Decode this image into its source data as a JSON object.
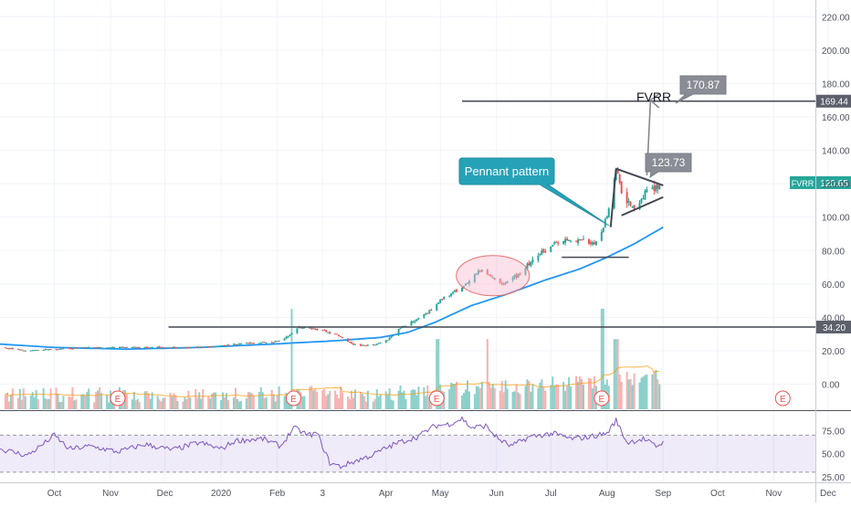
{
  "chart_data": {
    "type": "candlestick",
    "ticker": "FVRR",
    "title": "FVRR",
    "last_price": 120.65,
    "last_price_label": "120.65",
    "y_axis": {
      "range": [
        -15,
        230
      ],
      "ticks": [
        "0.00",
        "20.00",
        "40.00",
        "60.00",
        "80.00",
        "100.00",
        "120.00",
        "140.00",
        "160.00",
        "180.00",
        "200.00",
        "220.00"
      ]
    },
    "x_axis": {
      "range_days": [
        -10,
        440
      ],
      "labels": [
        {
          "text": "Oct",
          "day": 20
        },
        {
          "text": "Nov",
          "day": 51
        },
        {
          "text": "Dec",
          "day": 81
        },
        {
          "text": "2020",
          "day": 112
        },
        {
          "text": "Feb",
          "day": 143
        },
        {
          "text": "3",
          "day": 168
        },
        {
          "text": "Apr",
          "day": 203
        },
        {
          "text": "May",
          "day": 233
        },
        {
          "text": "Jun",
          "day": 264
        },
        {
          "text": "Jul",
          "day": 294
        },
        {
          "text": "Aug",
          "day": 325
        },
        {
          "text": "Sep",
          "day": 356
        },
        {
          "text": "Oct",
          "day": 386
        },
        {
          "text": "Nov",
          "day": 417
        },
        {
          "text": "Dec",
          "day": 447
        }
      ]
    },
    "price_anchors": [
      [
        -10,
        22
      ],
      [
        5,
        20
      ],
      [
        20,
        21
      ],
      [
        40,
        22
      ],
      [
        60,
        22
      ],
      [
        80,
        22
      ],
      [
        100,
        22
      ],
      [
        120,
        24
      ],
      [
        135,
        25
      ],
      [
        145,
        26
      ],
      [
        155,
        34
      ],
      [
        165,
        33
      ],
      [
        175,
        30
      ],
      [
        185,
        24
      ],
      [
        195,
        23
      ],
      [
        203,
        26
      ],
      [
        210,
        33
      ],
      [
        225,
        42
      ],
      [
        235,
        52
      ],
      [
        245,
        58
      ],
      [
        250,
        62
      ],
      [
        255,
        68
      ],
      [
        262,
        64
      ],
      [
        268,
        60
      ],
      [
        275,
        65
      ],
      [
        282,
        72
      ],
      [
        290,
        80
      ],
      [
        300,
        86
      ],
      [
        310,
        86
      ],
      [
        318,
        84
      ],
      [
        323,
        95
      ],
      [
        327,
        108
      ],
      [
        330,
        130
      ],
      [
        334,
        112
      ],
      [
        340,
        106
      ],
      [
        346,
        115
      ],
      [
        352,
        118
      ],
      [
        356,
        120.65
      ]
    ],
    "ma_anchors": [
      [
        -10,
        24
      ],
      [
        20,
        22
      ],
      [
        60,
        21
      ],
      [
        100,
        22
      ],
      [
        140,
        24
      ],
      [
        175,
        26
      ],
      [
        200,
        28
      ],
      [
        215,
        31
      ],
      [
        230,
        37
      ],
      [
        250,
        47
      ],
      [
        270,
        54
      ],
      [
        290,
        62
      ],
      [
        310,
        69
      ],
      [
        325,
        76
      ],
      [
        340,
        84
      ],
      [
        356,
        94
      ]
    ],
    "horizontal_levels": [
      {
        "price": 169.44,
        "label": "169.44",
        "from_day": 245
      },
      {
        "price": 34.2,
        "label": "34.20",
        "from_day": 83
      }
    ],
    "earnings_markers": {
      "label": "E",
      "days": [
        55,
        152,
        231,
        322,
        422
      ]
    },
    "volume_note": "volume histogram overlay on bottom of price pane",
    "annotations": {
      "pattern_label": "Pennant pattern",
      "target_high": "170.87",
      "target_low": "123.73",
      "brand_label": "FVRR"
    },
    "rsi": {
      "ticks": [
        "75.00",
        "50.00",
        "25.00"
      ],
      "upper": 70,
      "lower": 30,
      "range": [
        20,
        95
      ],
      "anchors": [
        [
          -10,
          55
        ],
        [
          5,
          48
        ],
        [
          15,
          62
        ],
        [
          20,
          70
        ],
        [
          28,
          55
        ],
        [
          40,
          58
        ],
        [
          55,
          52
        ],
        [
          70,
          60
        ],
        [
          85,
          54
        ],
        [
          100,
          62
        ],
        [
          112,
          55
        ],
        [
          120,
          64
        ],
        [
          135,
          66
        ],
        [
          145,
          58
        ],
        [
          152,
          78
        ],
        [
          160,
          70
        ],
        [
          165,
          72
        ],
        [
          172,
          40
        ],
        [
          178,
          36
        ],
        [
          186,
          42
        ],
        [
          195,
          48
        ],
        [
          203,
          56
        ],
        [
          210,
          62
        ],
        [
          220,
          68
        ],
        [
          230,
          80
        ],
        [
          238,
          82
        ],
        [
          245,
          88
        ],
        [
          250,
          78
        ],
        [
          258,
          80
        ],
        [
          265,
          66
        ],
        [
          272,
          58
        ],
        [
          282,
          68
        ],
        [
          295,
          72
        ],
        [
          305,
          66
        ],
        [
          315,
          68
        ],
        [
          325,
          72
        ],
        [
          330,
          86
        ],
        [
          336,
          62
        ],
        [
          345,
          66
        ],
        [
          352,
          58
        ],
        [
          356,
          62
        ]
      ]
    }
  }
}
